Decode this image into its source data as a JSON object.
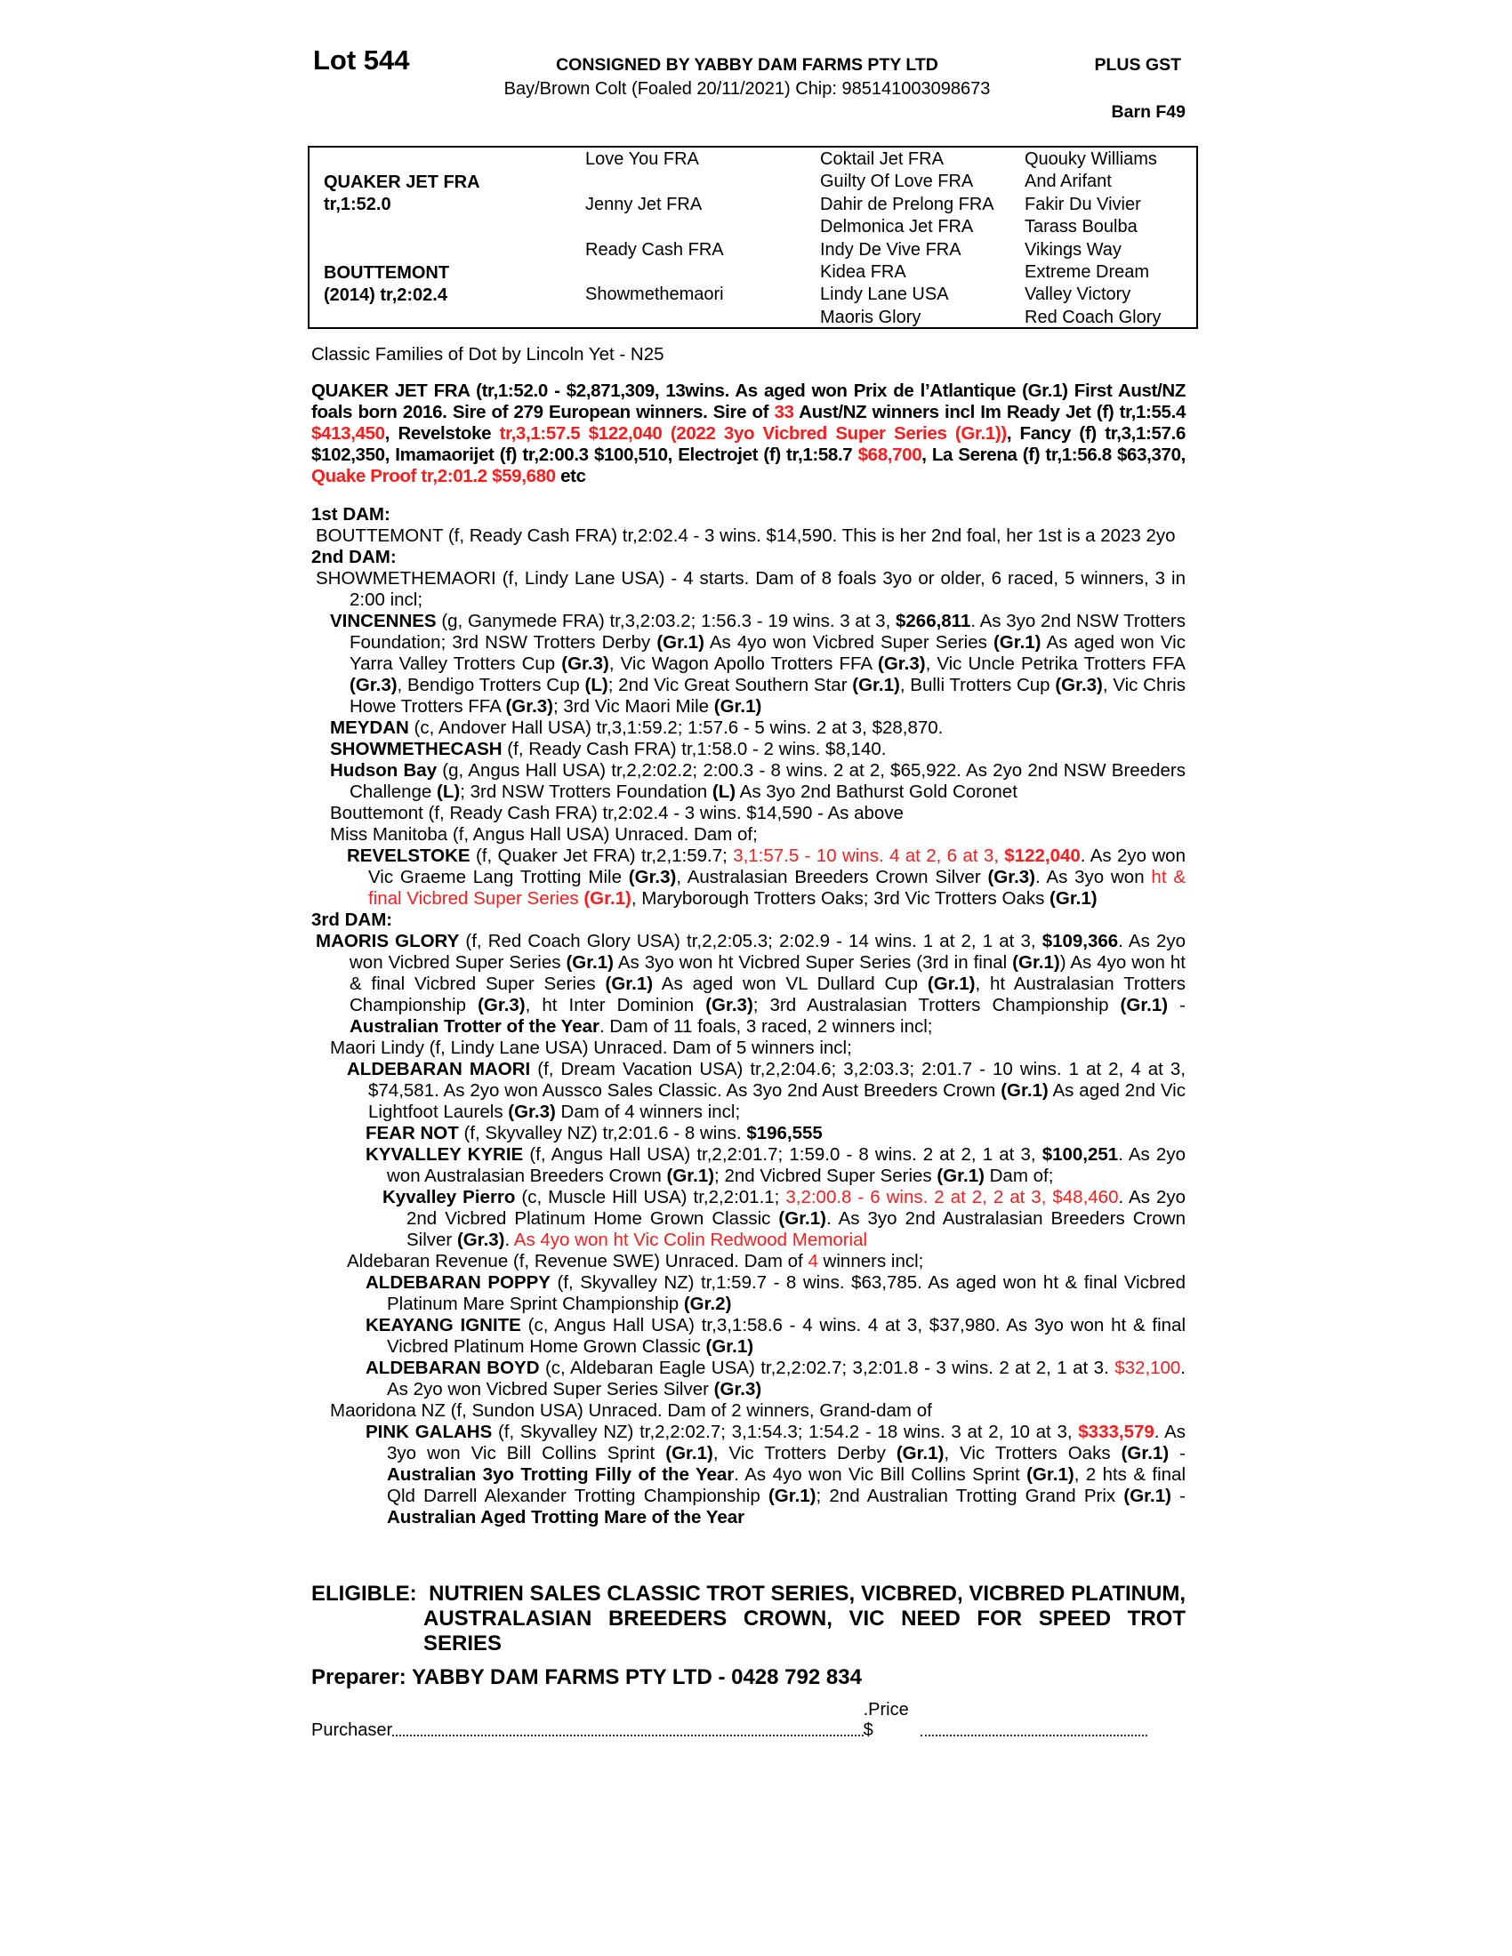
{
  "header": {
    "lot": "Lot 544",
    "consigned": "CONSIGNED BY YABBY DAM FARMS PTY LTD",
    "gst": "PLUS GST",
    "description": "Bay/Brown Colt (Foaled 20/11/2021) Chip: 985141003098673",
    "barn": "Barn F49"
  },
  "pedigree": {
    "sire_name": "QUAKER JET FRA",
    "sire_record": "tr,1:52.0",
    "dam_name": "BOUTTEMONT",
    "dam_record": "(2014) tr,2:02.4",
    "gen2": [
      "Love You FRA",
      "Jenny Jet FRA",
      "Ready Cash FRA",
      "Showmethemaori"
    ],
    "gen3": [
      "Coktail Jet FRA",
      "Guilty Of Love FRA",
      "Dahir de Prelong FRA",
      "Delmonica Jet FRA",
      "Indy De Vive FRA",
      "Kidea FRA",
      "Lindy Lane USA",
      "Maoris Glory"
    ],
    "gen4": [
      "Quouky Williams",
      "And Arifant",
      "Fakir Du Vivier",
      "Tarass Boulba",
      "Vikings Way",
      "Extreme Dream",
      "Valley Victory",
      "Red Coach Glory"
    ]
  },
  "classic_family": "Classic Families of Dot by Lincoln Yet - N25",
  "colors": {
    "highlight": "#ff1a1a",
    "text": "#000000"
  },
  "sire_para": [
    [
      "QUAKER JET FRA (tr,1:52.0 - $2,871,309, 13wins. As aged won Prix de l’Atlantique (Gr.1) First Aust/NZ foals born 2016. Sire of 279 European winners. Sire of ",
      "b"
    ],
    [
      "33",
      "br"
    ],
    [
      " Aust/NZ winners incl Im Ready Jet (f) tr,1:55.4 ",
      "b"
    ],
    [
      "$413,450",
      "br"
    ],
    [
      ", Revelstoke ",
      "b"
    ],
    [
      "tr,3,1:57.5 $122,040 (2022 3yo Vicbred Super Series (Gr.1))",
      "br"
    ],
    [
      ", Fancy (f) tr,3,1:57.6 $102,350, Imamaorijet (f) tr,2:00.3 $100,510, Electrojet (f) tr,1:58.7 ",
      "b"
    ],
    [
      "$68,700",
      "br"
    ],
    [
      ",  La Serena (f) tr,1:56.8 $63,370, ",
      "b"
    ],
    [
      "Quake Proof tr,2:01.2 $59,680",
      "br"
    ],
    [
      " etc",
      "b"
    ]
  ],
  "dams": [
    {
      "lvl": "h",
      "segs": [
        [
          "1st DAM:",
          "b"
        ]
      ]
    },
    {
      "lvl": "p0",
      "segs": [
        [
          "BOUTTEMONT (f, Ready Cash FRA) tr,2:02.4 - 3 wins. $14,590. This is her 2nd foal, her 1st is a 2023 2yo",
          ""
        ]
      ]
    },
    {
      "lvl": "h",
      "segs": [
        [
          "2nd DAM:",
          "b"
        ]
      ]
    },
    {
      "lvl": "p0",
      "segs": [
        [
          "SHOWMETHEMAORI (f, Lindy Lane USA) - 4 starts. Dam of 8 foals 3yo or older, 6 raced, 5 winners, 3 in 2:00 incl;",
          ""
        ]
      ]
    },
    {
      "lvl": "p1",
      "segs": [
        [
          "VINCENNES",
          "b"
        ],
        [
          " (g, Ganymede FRA) tr,3,2:03.2; 1:56.3 - 19 wins. 3 at 3, ",
          ""
        ],
        [
          "$266,811",
          "b"
        ],
        [
          ". As 3yo 2nd NSW Trotters Foundation; 3rd NSW Trotters Derby ",
          ""
        ],
        [
          "(Gr.1)",
          "b"
        ],
        [
          " As 4yo won Vicbred Super Series ",
          ""
        ],
        [
          "(Gr.1)",
          "b"
        ],
        [
          " As aged won Vic Yarra Valley Trotters Cup ",
          ""
        ],
        [
          "(Gr.3)",
          "b"
        ],
        [
          ", Vic Wagon Apollo Trotters FFA ",
          ""
        ],
        [
          "(Gr.3)",
          "b"
        ],
        [
          ", Vic Uncle Petrika Trotters FFA ",
          ""
        ],
        [
          "(Gr.3)",
          "b"
        ],
        [
          ", Bendigo Trotters Cup ",
          ""
        ],
        [
          "(L)",
          "b"
        ],
        [
          "; 2nd Vic Great Southern Star ",
          ""
        ],
        [
          "(Gr.1)",
          "b"
        ],
        [
          ", Bulli Trotters Cup ",
          ""
        ],
        [
          "(Gr.3)",
          "b"
        ],
        [
          ", Vic Chris Howe Trotters FFA ",
          ""
        ],
        [
          "(Gr.3)",
          "b"
        ],
        [
          "; 3rd Vic Maori Mile ",
          ""
        ],
        [
          "(Gr.1)",
          "b"
        ]
      ]
    },
    {
      "lvl": "p1",
      "segs": [
        [
          "MEYDAN",
          "b"
        ],
        [
          " (c, Andover Hall USA) tr,3,1:59.2; 1:57.6 - 5 wins. 2 at 3, $28,870.",
          ""
        ]
      ]
    },
    {
      "lvl": "p1",
      "segs": [
        [
          "SHOWMETHECASH",
          "b"
        ],
        [
          " (f, Ready Cash FRA) tr,1:58.0 - 2 wins. $8,140.",
          ""
        ]
      ]
    },
    {
      "lvl": "p1",
      "segs": [
        [
          "Hudson Bay",
          "b"
        ],
        [
          " (g, Angus Hall USA) tr,2,2:02.2; 2:00.3 - 8 wins. 2 at 2, $65,922. As 2yo 2nd NSW Breeders Challenge ",
          ""
        ],
        [
          "(L)",
          "b"
        ],
        [
          "; 3rd NSW Trotters Foundation ",
          ""
        ],
        [
          "(L)",
          "b"
        ],
        [
          " As 3yo 2nd Bathurst Gold Coronet",
          ""
        ]
      ]
    },
    {
      "lvl": "p1",
      "segs": [
        [
          "Bouttemont (f, Ready Cash FRA) tr,2:02.4 - 3 wins. $14,590 - As above",
          ""
        ]
      ]
    },
    {
      "lvl": "p1",
      "segs": [
        [
          "Miss Manitoba (f, Angus Hall USA) Unraced. Dam of;",
          ""
        ]
      ]
    },
    {
      "lvl": "p2",
      "segs": [
        [
          "REVELSTOKE",
          "b"
        ],
        [
          " (f, Quaker Jet FRA) tr,2,1:59.7; ",
          ""
        ],
        [
          "3,1:57.5 - 10 wins. 4 at 2, 6 at 3, ",
          "r"
        ],
        [
          "$122,040",
          "br"
        ],
        [
          ". As 2yo won Vic Graeme Lang Trotting Mile ",
          ""
        ],
        [
          "(Gr.3)",
          "b"
        ],
        [
          ", Australasian Breeders Crown Silver ",
          ""
        ],
        [
          "(Gr.3)",
          "b"
        ],
        [
          ". As 3yo won ",
          ""
        ],
        [
          "ht & final Vicbred Super Series ",
          "r"
        ],
        [
          "(Gr.1)",
          "br"
        ],
        [
          ", Maryborough Trotters Oaks; 3rd Vic Trotters Oaks ",
          ""
        ],
        [
          "(Gr.1)",
          "b"
        ]
      ]
    },
    {
      "lvl": "h",
      "segs": [
        [
          "3rd DAM:",
          "b"
        ]
      ]
    },
    {
      "lvl": "p0",
      "segs": [
        [
          "MAORIS GLORY",
          "b"
        ],
        [
          " (f, Red Coach Glory USA) tr,2,2:05.3; 2:02.9 - 14 wins. 1 at 2, 1 at 3, ",
          ""
        ],
        [
          "$109,366",
          "b"
        ],
        [
          ". As 2yo won Vicbred Super Series ",
          ""
        ],
        [
          "(Gr.1)",
          "b"
        ],
        [
          " As 3yo won ht Vicbred Super Series (3rd in final ",
          ""
        ],
        [
          "(Gr.1)",
          "b"
        ],
        [
          ") As 4yo won ht & final Vicbred Super Series ",
          ""
        ],
        [
          "(Gr.1)",
          "b"
        ],
        [
          " As aged won VL Dullard Cup ",
          ""
        ],
        [
          "(Gr.1)",
          "b"
        ],
        [
          ", ht Australasian Trotters Championship ",
          ""
        ],
        [
          "(Gr.3)",
          "b"
        ],
        [
          ", ht Inter Dominion ",
          ""
        ],
        [
          "(Gr.3)",
          "b"
        ],
        [
          "; 3rd Australasian Trotters Championship ",
          ""
        ],
        [
          "(Gr.1)",
          "b"
        ],
        [
          " - ",
          ""
        ],
        [
          "Australian Trotter of the Year",
          "b"
        ],
        [
          ". Dam of 11 foals, 3 raced, 2 winners incl;",
          ""
        ]
      ]
    },
    {
      "lvl": "p1",
      "segs": [
        [
          "Maori Lindy (f, Lindy Lane USA) Unraced. Dam of 5 winners incl;",
          ""
        ]
      ]
    },
    {
      "lvl": "p2",
      "segs": [
        [
          "ALDEBARAN MAORI",
          "b"
        ],
        [
          " (f, Dream Vacation USA) tr,2,2:04.6; 3,2:03.3; 2:01.7 - 10 wins. 1 at 2, 4 at 3, $74,581. As 2yo won Aussco Sales Classic. As 3yo 2nd Aust Breeders Crown ",
          ""
        ],
        [
          "(Gr.1)",
          "b"
        ],
        [
          " As aged 2nd Vic Lightfoot Laurels ",
          ""
        ],
        [
          "(Gr.3)",
          "b"
        ],
        [
          " Dam of 4 winners incl;",
          ""
        ]
      ]
    },
    {
      "lvl": "p3",
      "segs": [
        [
          "FEAR NOT",
          "b"
        ],
        [
          " (f, Skyvalley NZ) tr,2:01.6 - 8 wins. ",
          ""
        ],
        [
          "$196,555",
          "b"
        ]
      ]
    },
    {
      "lvl": "p3",
      "segs": [
        [
          "KYVALLEY KYRIE",
          "b"
        ],
        [
          " (f, Angus Hall USA) tr,2,2:01.7; 1:59.0 - 8 wins. 2 at 2, 1 at 3, ",
          ""
        ],
        [
          "$100,251",
          "b"
        ],
        [
          ". As 2yo won Australasian Breeders Crown ",
          ""
        ],
        [
          "(Gr.1)",
          "b"
        ],
        [
          "; 2nd Vicbred Super Series ",
          ""
        ],
        [
          "(Gr.1)",
          "b"
        ],
        [
          " Dam of;",
          ""
        ]
      ]
    },
    {
      "lvl": "p4",
      "segs": [
        [
          "Kyvalley Pierro",
          "b"
        ],
        [
          " (c, Muscle Hill USA) tr,2,2:01.1; ",
          ""
        ],
        [
          "3,2:00.8 - 6 wins. 2 at 2, 2 at 3, $48,460",
          "r"
        ],
        [
          ". As 2yo 2nd Vicbred Platinum Home Grown Classic ",
          ""
        ],
        [
          "(Gr.1)",
          "b"
        ],
        [
          ". As 3yo 2nd Australasian Breeders Crown Silver ",
          ""
        ],
        [
          "(Gr.3)",
          "b"
        ],
        [
          ". ",
          ""
        ],
        [
          "As 4yo won ht Vic Colin Redwood Memorial",
          "r"
        ]
      ]
    },
    {
      "lvl": "p2",
      "segs": [
        [
          "Aldebaran Revenue (f, Revenue SWE) Unraced. Dam of ",
          ""
        ],
        [
          "4",
          "r"
        ],
        [
          " winners incl;",
          ""
        ]
      ]
    },
    {
      "lvl": "p3",
      "segs": [
        [
          "ALDEBARAN POPPY",
          "b"
        ],
        [
          " (f, Skyvalley NZ) tr,1:59.7 - 8 wins. $63,785. As aged won ht & final Vicbred Platinum Mare Sprint Championship ",
          ""
        ],
        [
          "(Gr.2)",
          "b"
        ]
      ]
    },
    {
      "lvl": "p3",
      "segs": [
        [
          "KEAYANG IGNITE",
          "b"
        ],
        [
          " (c, Angus Hall USA) tr,3,1:58.6 - 4 wins. 4 at 3, $37,980. As 3yo won ht & final Vicbred Platinum Home Grown Classic ",
          ""
        ],
        [
          "(Gr.1)",
          "b"
        ]
      ]
    },
    {
      "lvl": "p3",
      "segs": [
        [
          "ALDEBARAN BOYD",
          "b"
        ],
        [
          " (c, Aldebaran Eagle USA) tr,2,2:02.7; 3,2:01.8 - 3 wins. 2 at 2, 1 at 3. ",
          ""
        ],
        [
          "$32,100",
          "r"
        ],
        [
          ". As 2yo won Vicbred Super Series Silver ",
          ""
        ],
        [
          "(Gr.3)",
          "b"
        ]
      ]
    },
    {
      "lvl": "p1",
      "segs": [
        [
          "Maoridona NZ (f, Sundon USA) Unraced. Dam of 2 winners, Grand-dam of",
          ""
        ]
      ]
    },
    {
      "lvl": "p3",
      "segs": [
        [
          "PINK GALAHS",
          "b"
        ],
        [
          " (f, Skyvalley NZ) tr,2,2:02.7; 3,1:54.3; 1:54.2 - 18 wins. 3 at 2, 10 at 3, ",
          ""
        ],
        [
          "$333,579",
          "br"
        ],
        [
          ". As 3yo won Vic Bill Collins Sprint ",
          ""
        ],
        [
          "(Gr.1)",
          "b"
        ],
        [
          ", Vic Trotters Derby ",
          ""
        ],
        [
          "(Gr.1)",
          "b"
        ],
        [
          ", Vic Trotters Oaks ",
          ""
        ],
        [
          "(Gr.1)",
          "b"
        ],
        [
          " - ",
          ""
        ],
        [
          "Australian 3yo Trotting Filly of the Year",
          "b"
        ],
        [
          ". As 4yo won Vic Bill Collins Sprint ",
          ""
        ],
        [
          "(Gr.1)",
          "b"
        ],
        [
          ", 2 hts & final Qld Darrell Alexander Trotting Championship ",
          ""
        ],
        [
          "(Gr.1)",
          "b"
        ],
        [
          "; 2nd Australian Trotting Grand Prix ",
          ""
        ],
        [
          "(Gr.1)",
          "b"
        ],
        [
          " - ",
          ""
        ],
        [
          "Australian Aged Trotting Mare of the Year",
          "b"
        ]
      ]
    }
  ],
  "eligible": {
    "label": "ELIGIBLE:",
    "text": "NUTRIEN SALES CLASSIC TROT SERIES, VICBRED, VICBRED PLATINUM, AUSTRALASIAN BREEDERS CROWN, VIC NEED FOR SPEED TROT SERIES"
  },
  "preparer": "Preparer: YABBY DAM FARMS PTY LTD - 0428 792 834",
  "purchase": {
    "purchaser_label": "Purchaser",
    "price_label": ".Price $"
  }
}
